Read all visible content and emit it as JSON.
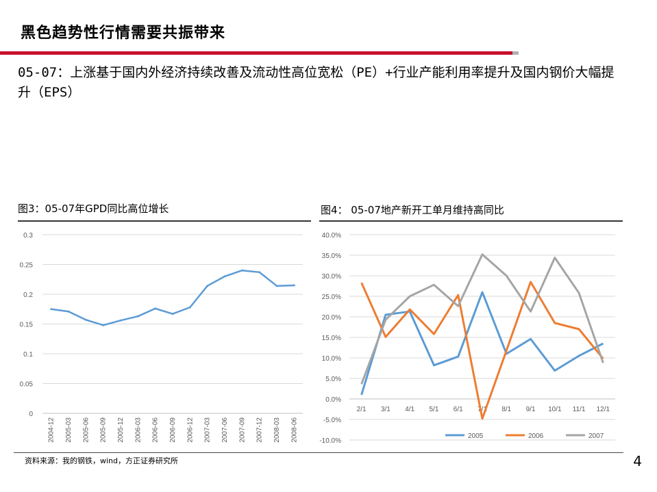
{
  "slide": {
    "title": "黑色趋势性行情需要共振带来",
    "subtitle": "05-07：上涨基于国内外经济持续改善及流动性高位宽松（PE）+行业产能利用率提升及国内钢价大幅提升（EPS）",
    "source": "资料来源：我的钢铁，wind，方正证券研究所",
    "page_number": "4",
    "colors": {
      "accent_red": "#c8102e",
      "rule_gray": "#b0b0b0"
    }
  },
  "chart_data": [
    {
      "caption": "图3：05-07年GPD同比高位增长",
      "type": "line",
      "categories": [
        "2004-12",
        "2005-03",
        "2005-06",
        "2005-09",
        "2005-12",
        "2006-03",
        "2006-06",
        "2006-09",
        "2006-12",
        "2007-03",
        "2007-06",
        "2007-09",
        "2007-12",
        "2008-03",
        "2008-06"
      ],
      "series": [
        {
          "color": "#5b9bd5",
          "values": [
            0.175,
            0.171,
            0.157,
            0.148,
            0.156,
            0.163,
            0.176,
            0.167,
            0.178,
            0.214,
            0.23,
            0.24,
            0.237,
            0.214,
            0.215
          ]
        }
      ],
      "yticks": [
        "0",
        "0.05",
        "0.1",
        "0.15",
        "0.2",
        "0.25",
        "0.3"
      ],
      "ylim": [
        0,
        0.3
      ],
      "grid": true,
      "legend": "none"
    },
    {
      "caption": "图4： 05-07地产新开工单月维持高同比",
      "type": "line",
      "categories": [
        "2/1",
        "3/1",
        "4/1",
        "5/1",
        "6/1",
        "7/1",
        "8/1",
        "9/1",
        "10/1",
        "11/1",
        "12/1"
      ],
      "series": [
        {
          "name": "2005",
          "color": "#5b9bd5",
          "values": [
            1.0,
            20.5,
            21.3,
            8.2,
            10.3,
            26.0,
            11.0,
            14.6,
            6.9,
            10.5,
            13.5
          ]
        },
        {
          "name": "2006",
          "color": "#ed7d31",
          "values": [
            28.3,
            15.1,
            21.8,
            15.8,
            25.3,
            -4.8,
            11.8,
            28.5,
            18.5,
            17.0,
            9.8
          ]
        },
        {
          "name": "2007",
          "color": "#a5a5a5",
          "values": [
            3.6,
            19.3,
            25.0,
            27.8,
            22.6,
            35.2,
            30.0,
            21.3,
            34.4,
            25.8,
            8.8
          ]
        }
      ],
      "yticks": [
        "-10.0%",
        "-5.0%",
        "0.0%",
        "5.0%",
        "10.0%",
        "15.0%",
        "20.0%",
        "25.0%",
        "30.0%",
        "35.0%",
        "40.0%"
      ],
      "ylim": [
        -10,
        40
      ],
      "grid": true,
      "legend": "bottom"
    }
  ]
}
